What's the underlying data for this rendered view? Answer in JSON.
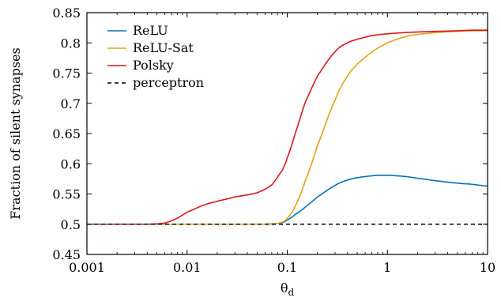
{
  "chart_data": {
    "type": "line",
    "xlabel": "θ",
    "xlabel_subscript": "d",
    "ylabel": "Fraction of silent synapses",
    "xscale": "log",
    "xlim": [
      0.001,
      10
    ],
    "ylim": [
      0.45,
      0.85
    ],
    "xticks": [
      {
        "value": 0.001,
        "label": "0.001"
      },
      {
        "value": 0.01,
        "label": "0.01"
      },
      {
        "value": 0.1,
        "label": "0.1"
      },
      {
        "value": 1,
        "label": "1"
      },
      {
        "value": 10,
        "label": "10"
      }
    ],
    "yticks": [
      {
        "value": 0.45,
        "label": "0.45"
      },
      {
        "value": 0.5,
        "label": "0.5"
      },
      {
        "value": 0.55,
        "label": "0.55"
      },
      {
        "value": 0.6,
        "label": "0.6"
      },
      {
        "value": 0.65,
        "label": "0.65"
      },
      {
        "value": 0.7,
        "label": "0.7"
      },
      {
        "value": 0.75,
        "label": "0.75"
      },
      {
        "value": 0.8,
        "label": "0.8"
      },
      {
        "value": 0.85,
        "label": "0.85"
      }
    ],
    "grid": false,
    "legend_position": "top-left",
    "series": [
      {
        "name": "ReLU",
        "color": "#0072bd",
        "dash": "solid",
        "x": [
          0.001,
          0.005,
          0.01,
          0.03,
          0.06,
          0.08,
          0.09,
          0.1,
          0.12,
          0.15,
          0.2,
          0.3,
          0.4,
          0.5,
          0.7,
          0.85,
          1.0,
          1.5,
          2.0,
          3.0,
          5.0,
          7.0,
          10.0
        ],
        "y": [
          0.5,
          0.5,
          0.5,
          0.5,
          0.5,
          0.501,
          0.503,
          0.507,
          0.516,
          0.528,
          0.545,
          0.564,
          0.573,
          0.577,
          0.58,
          0.581,
          0.581,
          0.579,
          0.576,
          0.572,
          0.568,
          0.566,
          0.563
        ]
      },
      {
        "name": "ReLU-Sat",
        "color": "#e6a117",
        "dash": "solid",
        "x": [
          0.001,
          0.005,
          0.01,
          0.03,
          0.06,
          0.08,
          0.09,
          0.1,
          0.12,
          0.15,
          0.2,
          0.3,
          0.4,
          0.5,
          0.7,
          1.0,
          1.5,
          2.0,
          3.0,
          5.0,
          7.0,
          10.0
        ],
        "y": [
          0.5,
          0.5,
          0.5,
          0.5,
          0.5,
          0.501,
          0.504,
          0.51,
          0.53,
          0.57,
          0.63,
          0.705,
          0.745,
          0.765,
          0.785,
          0.8,
          0.81,
          0.814,
          0.817,
          0.819,
          0.82,
          0.82
        ]
      },
      {
        "name": "Polsky",
        "color": "#d7191c",
        "dash": "solid",
        "x": [
          0.001,
          0.004,
          0.006,
          0.008,
          0.01,
          0.015,
          0.02,
          0.03,
          0.05,
          0.07,
          0.09,
          0.1,
          0.12,
          0.15,
          0.2,
          0.3,
          0.4,
          0.5,
          0.7,
          1.0,
          1.5,
          2.0,
          3.0,
          5.0,
          7.0,
          10.0
        ],
        "y": [
          0.5,
          0.5,
          0.502,
          0.51,
          0.52,
          0.532,
          0.538,
          0.545,
          0.552,
          0.565,
          0.59,
          0.61,
          0.65,
          0.7,
          0.745,
          0.785,
          0.8,
          0.806,
          0.812,
          0.815,
          0.817,
          0.818,
          0.819,
          0.82,
          0.821,
          0.821
        ]
      },
      {
        "name": "perceptron",
        "color": "#000000",
        "dash": "dashed",
        "x": [
          0.001,
          10
        ],
        "y": [
          0.5,
          0.5
        ]
      }
    ]
  }
}
